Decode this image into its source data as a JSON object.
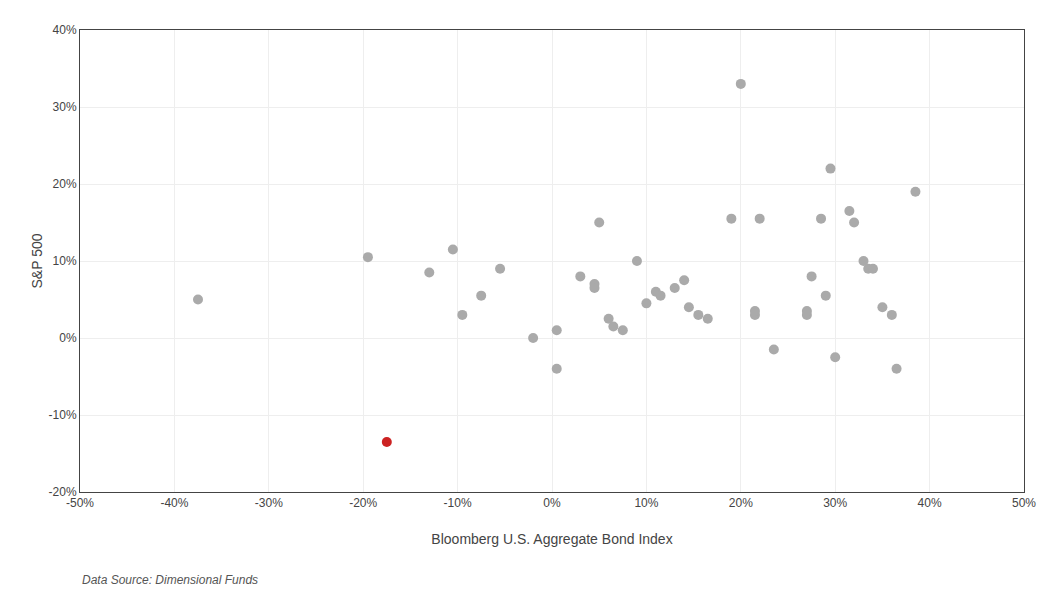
{
  "chart_data": {
    "type": "scatter",
    "xlabel": "Bloomberg U.S. Aggregate Bond Index",
    "ylabel": "S&P 500",
    "source": "Data Source: Dimensional Funds",
    "xlim": [
      -0.5,
      0.5
    ],
    "ylim": [
      -0.2,
      0.4
    ],
    "xticks": [
      {
        "value": -0.5,
        "label": "-50%"
      },
      {
        "value": -0.4,
        "label": "-40%"
      },
      {
        "value": -0.3,
        "label": "-30%"
      },
      {
        "value": -0.2,
        "label": "-20%"
      },
      {
        "value": -0.1,
        "label": "-10%"
      },
      {
        "value": 0.0,
        "label": "0%"
      },
      {
        "value": 0.1,
        "label": "10%"
      },
      {
        "value": 0.2,
        "label": "20%"
      },
      {
        "value": 0.3,
        "label": "30%"
      },
      {
        "value": 0.4,
        "label": "40%"
      },
      {
        "value": 0.5,
        "label": "50%"
      }
    ],
    "yticks": [
      {
        "value": -0.2,
        "label": "-20%"
      },
      {
        "value": -0.1,
        "label": "-10%"
      },
      {
        "value": 0.0,
        "label": "0%"
      },
      {
        "value": 0.1,
        "label": "10%"
      },
      {
        "value": 0.2,
        "label": "20%"
      },
      {
        "value": 0.3,
        "label": "30%"
      },
      {
        "value": 0.4,
        "label": "40%"
      }
    ],
    "grid": true,
    "series": [
      {
        "color": "#aaaaaa",
        "points": [
          [
            -0.375,
            0.05
          ],
          [
            -0.195,
            0.105
          ],
          [
            -0.13,
            0.085
          ],
          [
            -0.105,
            0.115
          ],
          [
            -0.095,
            0.03
          ],
          [
            -0.075,
            0.055
          ],
          [
            -0.055,
            0.09
          ],
          [
            -0.02,
            0.0
          ],
          [
            0.005,
            0.01
          ],
          [
            0.005,
            -0.04
          ],
          [
            0.03,
            0.08
          ],
          [
            0.045,
            0.07
          ],
          [
            0.045,
            0.065
          ],
          [
            0.05,
            0.15
          ],
          [
            0.06,
            0.025
          ],
          [
            0.065,
            0.015
          ],
          [
            0.075,
            0.01
          ],
          [
            0.09,
            0.1
          ],
          [
            0.1,
            0.045
          ],
          [
            0.11,
            0.06
          ],
          [
            0.115,
            0.055
          ],
          [
            0.13,
            0.065
          ],
          [
            0.14,
            0.075
          ],
          [
            0.145,
            0.04
          ],
          [
            0.155,
            0.03
          ],
          [
            0.165,
            0.025
          ],
          [
            0.19,
            0.155
          ],
          [
            0.2,
            0.33
          ],
          [
            0.215,
            0.03
          ],
          [
            0.215,
            0.035
          ],
          [
            0.22,
            0.155
          ],
          [
            0.235,
            -0.015
          ],
          [
            0.27,
            0.03
          ],
          [
            0.27,
            0.035
          ],
          [
            0.275,
            0.08
          ],
          [
            0.285,
            0.155
          ],
          [
            0.29,
            0.055
          ],
          [
            0.295,
            0.22
          ],
          [
            0.3,
            -0.025
          ],
          [
            0.315,
            0.165
          ],
          [
            0.32,
            0.15
          ],
          [
            0.33,
            0.1
          ],
          [
            0.335,
            0.09
          ],
          [
            0.34,
            0.09
          ],
          [
            0.35,
            0.04
          ],
          [
            0.36,
            0.03
          ],
          [
            0.365,
            -0.04
          ],
          [
            0.385,
            0.19
          ]
        ]
      },
      {
        "color": "#cc2222",
        "points": [
          [
            -0.175,
            -0.135
          ]
        ]
      }
    ]
  }
}
